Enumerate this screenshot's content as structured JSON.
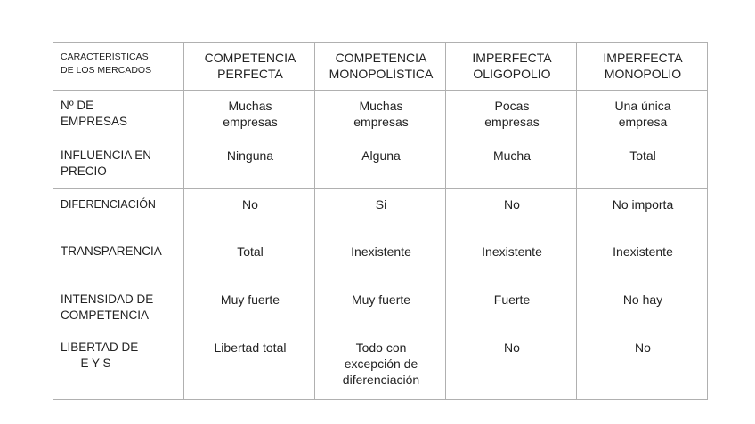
{
  "header": {
    "corner": "CARACTERÍSTICAS\nDE LOS MERCADOS",
    "columns": [
      "COMPETENCIA\nPERFECTA",
      "COMPETENCIA\nMONOPOLÍSTICA",
      "IMPERFECTA\nOLIGOPOLIO",
      "IMPERFECTA\nMONOPOLIO"
    ]
  },
  "rows": [
    {
      "label": "Nº DE\nEMPRESAS",
      "cells": [
        "Muchas\nempresas",
        "Muchas\nempresas",
        "Pocas\nempresas",
        "Una única\nempresa"
      ]
    },
    {
      "label": "INFLUENCIA EN\nPRECIO",
      "cells": [
        "Ninguna",
        "Alguna",
        "Mucha",
        "Total"
      ]
    },
    {
      "label": "DIFERENCIACIÓN",
      "cells": [
        "No",
        "Si",
        "No",
        "No importa"
      ]
    },
    {
      "label": "TRANSPARENCIA",
      "cells": [
        "Total",
        "Inexistente",
        "Inexistente",
        "Inexistente"
      ]
    },
    {
      "label": "INTENSIDAD DE\nCOMPETENCIA",
      "cells": [
        "Muy fuerte",
        "Muy fuerte",
        "Fuerte",
        "No hay"
      ]
    },
    {
      "label": "LIBERTAD DE\n      E Y S",
      "cells": [
        "Libertad total",
        "Todo con\nexcepción de\ndiferenciación",
        "No",
        "No"
      ]
    }
  ]
}
